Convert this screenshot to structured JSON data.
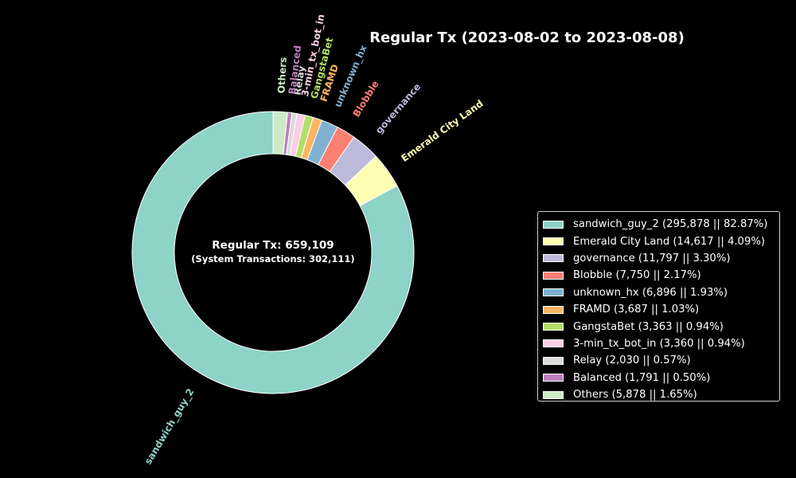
{
  "chart_data": {
    "type": "pie",
    "variant": "donut",
    "title": "Regular Tx (2023-08-02 to 2023-08-08)",
    "center_text": {
      "line1": "Regular Tx: 659,109",
      "line2": "(System Transactions: 302,111)"
    },
    "slices": [
      {
        "label": "sandwich_guy_2",
        "value": 295878,
        "percent": "82.87%",
        "legend": "sandwich_guy_2 (295,878 || 82.87%)",
        "color": "#8dd3c7"
      },
      {
        "label": "Emerald City Land",
        "value": 14617,
        "percent": "4.09%",
        "legend": "Emerald City Land (14,617 || 4.09%)",
        "color": "#ffffb3"
      },
      {
        "label": "governance",
        "value": 11797,
        "percent": "3.30%",
        "legend": "governance (11,797 || 3.30%)",
        "color": "#bebada"
      },
      {
        "label": "Blobble",
        "value": 7750,
        "percent": "2.17%",
        "legend": "Blobble (7,750 || 2.17%)",
        "color": "#fb8072"
      },
      {
        "label": "unknown_hx",
        "value": 6896,
        "percent": "1.93%",
        "legend": "unknown_hx (6,896 || 1.93%)",
        "color": "#80b1d3"
      },
      {
        "label": "FRAMD",
        "value": 3687,
        "percent": "1.03%",
        "legend": "FRAMD (3,687 || 1.03%)",
        "color": "#fdb462"
      },
      {
        "label": "GangstaBet",
        "value": 3363,
        "percent": "0.94%",
        "legend": "GangstaBet (3,363 || 0.94%)",
        "color": "#b3de69"
      },
      {
        "label": "3-min_tx_bot_in",
        "value": 3360,
        "percent": "0.94%",
        "legend": "3-min_tx_bot_in (3,360 || 0.94%)",
        "color": "#fccde5"
      },
      {
        "label": "Relay",
        "value": 2030,
        "percent": "0.57%",
        "legend": "Relay (2,030 || 0.57%)",
        "color": "#d9d9d9"
      },
      {
        "label": "Balanced",
        "value": 1791,
        "percent": "0.50%",
        "legend": "Balanced (1,791 || 0.50%)",
        "color": "#bc80bd"
      },
      {
        "label": "Others",
        "value": 5878,
        "percent": "1.65%",
        "legend": "Others (5,878 || 1.65%)",
        "color": "#ccebc5"
      }
    ],
    "start": "top",
    "direction": "clockwise",
    "legend_position": "right"
  }
}
